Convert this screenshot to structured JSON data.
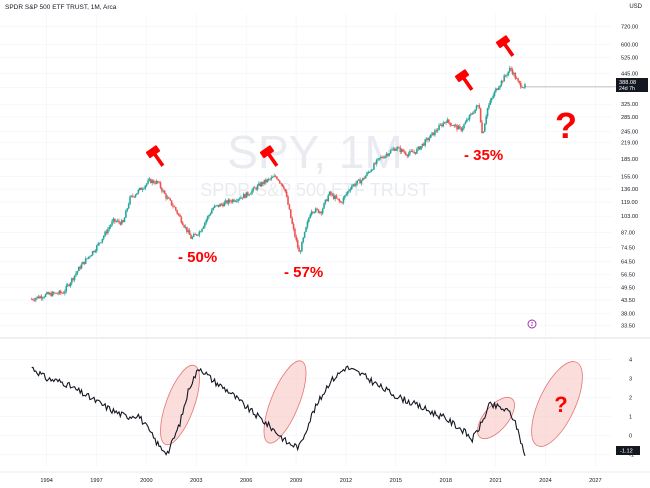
{
  "header": {
    "title": "SPDR S&P 500 ETF TRUST, 1M, Arca",
    "currency": "USD"
  },
  "watermark": {
    "ticker": "SPY, 1M",
    "name": "SPDR S&P 500 ETF TRUST"
  },
  "price_badge": {
    "price": "388.08",
    "countdown": "24d 7h"
  },
  "indicator_badge": "-1.12",
  "symbol_marker": "2",
  "annotations": {
    "drop1": "- 50%",
    "drop2": "- 57%",
    "drop3": "- 35%",
    "question": "?"
  },
  "colors": {
    "up": "#26a69a",
    "down": "#ef5350",
    "annotation_red": "#ff0000",
    "ellipse_fill": "#f8c6c4",
    "ellipse_stroke": "#e57373",
    "price_badge_bg": "#131722",
    "grid": "#f0f3fa"
  },
  "chart_data": [
    {
      "type": "candlestick",
      "title": "SPDR S&P 500 ETF TRUST, 1M, Arca",
      "ylabel": "USD",
      "y_scale": "log",
      "ylim": [
        32,
        820
      ],
      "y_ticks": [
        33.5,
        38.0,
        43.5,
        49.5,
        56.5,
        64.5,
        74.5,
        87.0,
        103.0,
        119.0,
        136.0,
        155.0,
        185.0,
        219.0,
        245.0,
        285.0,
        325.0,
        385.0,
        445.0,
        525.0,
        600.0,
        720.0
      ],
      "x_ticks": [
        "1994",
        "1997",
        "2000",
        "2003",
        "2006",
        "2009",
        "2012",
        "2015",
        "2018",
        "2021",
        "2024",
        "2027"
      ],
      "xlim": [
        1993.0,
        2028.0
      ],
      "grid": true,
      "series": [
        {
          "x": [
            1993.1,
            1994.0,
            1995.0,
            1996.0,
            1997.0,
            1998.0,
            1998.6,
            1999.0,
            2000.2,
            2000.7,
            2001.2,
            2001.7,
            2002.7,
            2003.2,
            2004.0,
            2005.0,
            2006.0,
            2007.0,
            2007.8,
            2008.3,
            2008.8,
            2009.2,
            2009.9,
            2010.5,
            2011.0,
            2011.7,
            2012.3,
            2013.0,
            2014.0,
            2015.0,
            2015.7,
            2016.2,
            2017.0,
            2018.0,
            2018.9,
            2019.5,
            2020.0,
            2020.2,
            2020.5,
            2021.0,
            2021.9,
            2022.4,
            2022.8
          ],
          "values": [
            44,
            46,
            47,
            61,
            75,
            98,
            96,
            123,
            148,
            145,
            125,
            112,
            82,
            88,
            112,
            120,
            128,
            145,
            155,
            138,
            92,
            70,
            110,
            108,
            130,
            118,
            140,
            150,
            185,
            208,
            195,
            200,
            230,
            275,
            250,
            290,
            325,
            235,
            310,
            375,
            470,
            400,
            388
          ]
        }
      ]
    },
    {
      "type": "line",
      "y_ticks": [
        4,
        3,
        2,
        1,
        0,
        -1
      ],
      "ylim": [
        -1.6,
        4.4
      ],
      "xlim": [
        1993.0,
        2028.0
      ],
      "series": [
        {
          "x": [
            1993.1,
            1994.0,
            1995.0,
            1996.0,
            1997.0,
            1998.0,
            1998.8,
            1999.5,
            2000.2,
            2000.8,
            2001.3,
            2002.0,
            2002.6,
            2003.2,
            2004.0,
            2005.0,
            2006.0,
            2007.0,
            2007.8,
            2008.5,
            2009.2,
            2010.0,
            2011.0,
            2012.0,
            2013.0,
            2014.0,
            2015.0,
            2016.0,
            2017.0,
            2018.0,
            2019.0,
            2019.6,
            2020.2,
            2020.6,
            2021.2,
            2021.9,
            2022.3,
            2022.8
          ],
          "values": [
            3.6,
            3.0,
            2.8,
            2.3,
            1.8,
            1.3,
            1.0,
            1.1,
            0.2,
            -0.6,
            -0.9,
            0.6,
            2.6,
            3.6,
            2.9,
            2.3,
            1.5,
            0.8,
            0.2,
            -0.4,
            -0.6,
            1.2,
            2.8,
            3.6,
            3.2,
            2.6,
            2.1,
            1.7,
            1.3,
            0.9,
            0.3,
            -0.2,
            0.7,
            1.6,
            1.5,
            1.2,
            0.4,
            -1.12
          ]
        }
      ]
    }
  ]
}
